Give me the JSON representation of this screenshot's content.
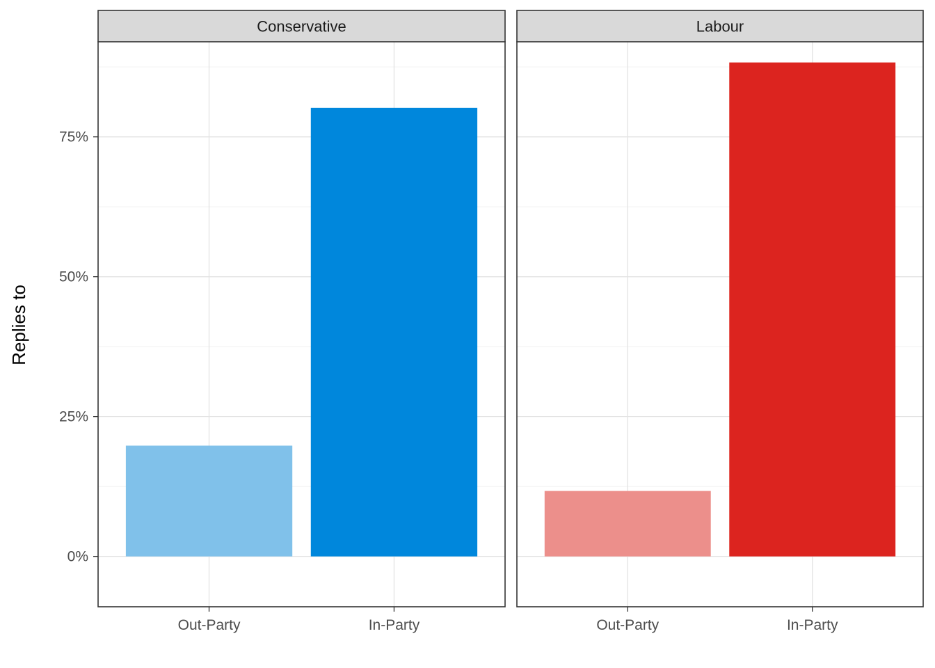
{
  "chart_data": {
    "type": "bar",
    "ylabel": "Replies to",
    "xlabel": "",
    "ylim": [
      -0.09,
      0.92
    ],
    "y_ticks": [
      {
        "value": 0,
        "label": "0%"
      },
      {
        "value": 0.25,
        "label": "25%"
      },
      {
        "value": 0.5,
        "label": "50%"
      },
      {
        "value": 0.75,
        "label": "75%"
      }
    ],
    "y_minor": [
      0.125,
      0.375,
      0.625,
      0.875
    ],
    "categories": [
      "Out-Party",
      "In-Party"
    ],
    "grid": true,
    "facets": [
      {
        "title": "Conservative",
        "values": [
          0.198,
          0.802
        ],
        "colors": [
          "#80C1EA",
          "#0087DC"
        ]
      },
      {
        "title": "Labour",
        "values": [
          0.117,
          0.883
        ],
        "colors": [
          "#EC8F8B",
          "#DC241F"
        ]
      }
    ]
  }
}
